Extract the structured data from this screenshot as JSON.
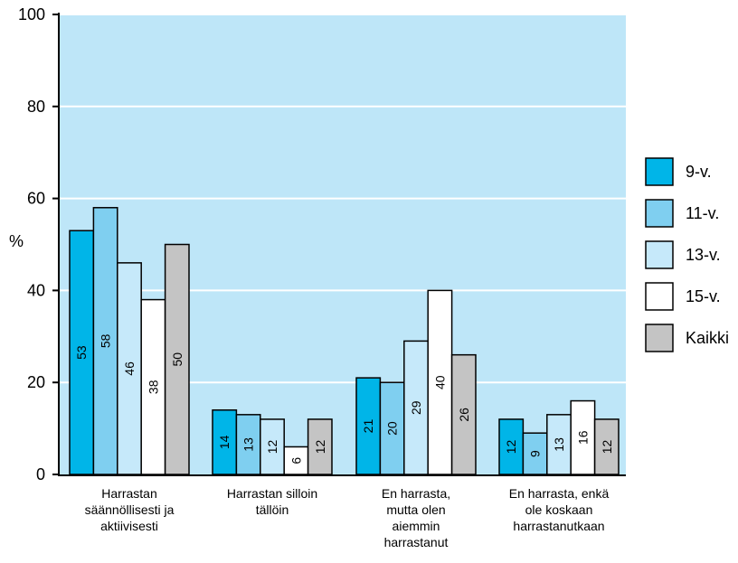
{
  "chart_data": {
    "type": "bar",
    "ylabel": "%",
    "ylim": [
      0,
      100
    ],
    "yticks": [
      0,
      20,
      40,
      60,
      80,
      100
    ],
    "grid": true,
    "legend_position": "right",
    "categories": [
      [
        "Harrastan",
        "säännöllisesti ja",
        "aktiivisesti"
      ],
      [
        "Harrastan silloin",
        "tällöin"
      ],
      [
        "En harrasta,",
        "mutta olen",
        "aiemmin",
        "harrastanut"
      ],
      [
        "En harrasta, enkä",
        "ole koskaan",
        "harrastanutkaan"
      ]
    ],
    "series": [
      {
        "name": "9-v.",
        "color": "#00b5e8",
        "values": [
          53,
          14,
          21,
          12
        ]
      },
      {
        "name": "11-v.",
        "color": "#7fcff0",
        "values": [
          58,
          13,
          20,
          9
        ]
      },
      {
        "name": "13-v.",
        "color": "#c6e9fa",
        "values": [
          46,
          12,
          29,
          13
        ]
      },
      {
        "name": "15-v.",
        "color": "#ffffff",
        "values": [
          38,
          6,
          40,
          16
        ]
      },
      {
        "name": "Kaikki",
        "color": "#c4c4c4",
        "values": [
          50,
          12,
          26,
          12
        ]
      }
    ],
    "plot_background": "#bee6f8"
  }
}
